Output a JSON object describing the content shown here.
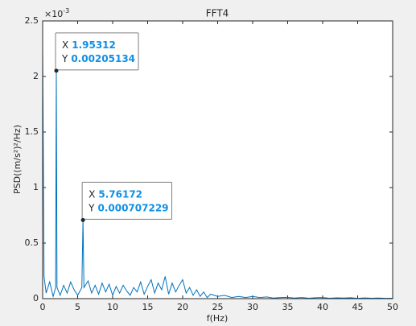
{
  "chart_data": {
    "type": "line",
    "title": "FFT4",
    "x_label": "f(Hz)",
    "y_label": "PSD((m/s²)²/Hz)",
    "y_multiplier": {
      "base": "×10",
      "exponent": "-3"
    },
    "xlim": [
      0,
      50
    ],
    "xticks": [
      0,
      5,
      10,
      15,
      20,
      25,
      30,
      35,
      40,
      45,
      50
    ],
    "ylim": [
      0,
      0.0025
    ],
    "yticks": [
      {
        "value": 0,
        "label": "0"
      },
      {
        "value": 0.0005,
        "label": "0.5"
      },
      {
        "value": 0.001,
        "label": "1"
      },
      {
        "value": 0.0015,
        "label": "1.5"
      },
      {
        "value": 0.002,
        "label": "2"
      },
      {
        "value": 0.0025,
        "label": "2.5"
      }
    ],
    "grid": false,
    "series": [
      {
        "color": "#0072bd",
        "x": [
          0,
          0.2,
          0.5,
          1.0,
          1.5,
          1.85,
          1.95312,
          2.05,
          2.5,
          3.0,
          3.5,
          4.0,
          4.5,
          5.0,
          5.6,
          5.76172,
          5.9,
          6.5,
          7.0,
          7.5,
          8.0,
          8.5,
          9.0,
          9.5,
          10.0,
          10.5,
          11.0,
          11.5,
          12.0,
          12.5,
          13.0,
          13.5,
          14.0,
          14.5,
          15.0,
          15.5,
          16.0,
          16.5,
          17.0,
          17.5,
          18.0,
          18.5,
          19.0,
          19.5,
          20.0,
          20.5,
          21.0,
          21.5,
          22.0,
          22.5,
          23.0,
          23.5,
          24.0,
          25,
          26,
          27,
          28,
          29,
          30,
          31,
          32,
          33,
          34,
          35,
          36,
          37,
          38,
          39,
          40,
          41,
          42,
          43,
          44,
          45,
          46,
          47,
          48,
          49,
          50
        ],
        "values": [
          0.00228,
          0.0002,
          5e-05,
          0.00015,
          2e-05,
          0.0001,
          0.00205134,
          0.0001,
          3e-05,
          0.00012,
          5e-05,
          0.00015,
          8e-05,
          3e-05,
          0.0001,
          0.000707229,
          0.0001,
          0.00016,
          5e-05,
          0.00012,
          4e-05,
          0.00014,
          6e-05,
          0.00013,
          3e-05,
          0.00011,
          5e-05,
          0.00012,
          7e-05,
          3e-05,
          0.0001,
          6e-05,
          0.00015,
          4e-05,
          0.00011,
          0.00017,
          5e-05,
          0.00014,
          8e-05,
          0.0002,
          4e-05,
          0.00014,
          6e-05,
          0.00012,
          0.00017,
          5e-05,
          0.0001,
          3e-05,
          8e-05,
          2e-05,
          6e-05,
          1e-05,
          4e-05,
          2e-05,
          3e-05,
          1e-05,
          2e-05,
          1e-05,
          2e-05,
          1e-05,
          1.5e-05,
          5e-06,
          1e-05,
          1.2e-05,
          5e-06,
          1e-05,
          4e-06,
          8e-06,
          1e-05,
          4e-06,
          7e-06,
          5e-06,
          8e-06,
          3e-06,
          6e-06,
          4e-06,
          5e-06,
          3e-06,
          4e-06
        ]
      }
    ],
    "datatips": [
      {
        "x_name": "X",
        "x": 1.95312,
        "y_name": "Y",
        "y": 0.00205134
      },
      {
        "x_name": "X",
        "x": 5.76172,
        "y_name": "Y",
        "y": 0.000707229
      }
    ]
  }
}
